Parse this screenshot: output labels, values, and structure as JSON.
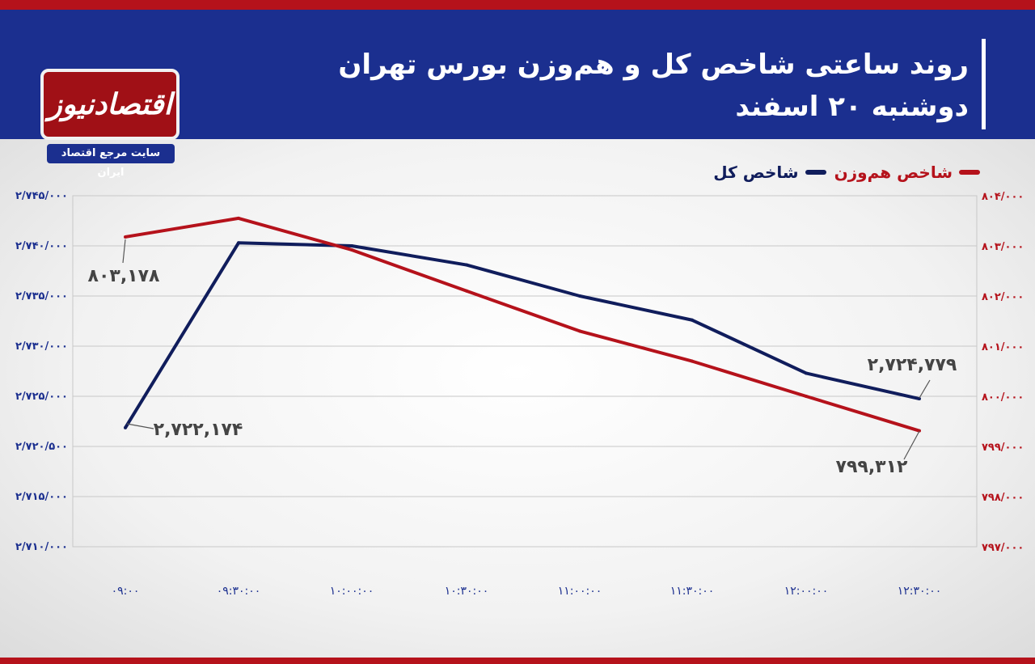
{
  "header": {
    "title_line1": "روند ساعتی شاخص کل و هم‌وزن بورس تهران",
    "title_line2": "دوشنبه ۲۰ اسفند"
  },
  "logo": {
    "name": "اقتصادنیوز",
    "tagline": "سایت مرجع اقتصاد ایران"
  },
  "colors": {
    "brand_red": "#b5121b",
    "brand_blue": "#1b2f8f",
    "series_total": "#101d5c",
    "series_equal": "#b5121b"
  },
  "legend": {
    "equal_weight": "شاخص هم‌وزن",
    "total": "شاخص کل"
  },
  "chart_data": {
    "type": "line",
    "x": [
      "۰۹:۰۰",
      "۰۹:۳۰:۰۰",
      "۱۰:۰۰:۰۰",
      "۱۰:۳۰:۰۰",
      "۱۱:۰۰:۰۰",
      "۱۱:۳۰:۰۰",
      "۱۲:۰۰:۰۰",
      "۱۲:۳۰:۰۰"
    ],
    "left_axis": {
      "ylim": [
        2710000,
        2745000
      ],
      "ticks": [
        2710000,
        2715000,
        2720500,
        2725000,
        2730000,
        2735000,
        2740000,
        2745000
      ],
      "tick_labels": [
        "۲/۷۱۰/۰۰۰",
        "۲/۷۱۵/۰۰۰",
        "۲/۷۲۰/۵۰۰",
        "۲/۷۲۵/۰۰۰",
        "۲/۷۳۰/۰۰۰",
        "۲/۷۳۵/۰۰۰",
        "۲/۷۴۰/۰۰۰",
        "۲/۷۴۵/۰۰۰"
      ]
    },
    "right_axis": {
      "ylim": [
        797000,
        804000
      ],
      "ticks": [
        797000,
        798000,
        799000,
        800000,
        801000,
        802000,
        803000,
        804000
      ],
      "tick_labels": [
        "۷۹۷/۰۰۰",
        "۷۹۸/۰۰۰",
        "۷۹۹/۰۰۰",
        "۸۰۰/۰۰۰",
        "۸۰۱/۰۰۰",
        "۸۰۲/۰۰۰",
        "۸۰۳/۰۰۰",
        "۸۰۴/۰۰۰"
      ]
    },
    "series": [
      {
        "name": "شاخص کل",
        "axis": "left",
        "values": [
          2722174,
          2740300,
          2740000,
          2738100,
          2735000,
          2732600,
          2727300,
          2724779
        ]
      },
      {
        "name": "شاخص هم‌وزن",
        "axis": "right",
        "values": [
          803178,
          803550,
          802920,
          802100,
          801300,
          800700,
          800000,
          799312
        ]
      }
    ],
    "annotations": [
      {
        "text": "۸۰۳,۱۷۸",
        "series": 1,
        "point": 0
      },
      {
        "text": "۲,۷۲۲,۱۷۴",
        "series": 0,
        "point": 0
      },
      {
        "text": "۲,۷۲۴,۷۷۹",
        "series": 0,
        "point": 7
      },
      {
        "text": "۷۹۹,۳۱۲",
        "series": 1,
        "point": 7
      }
    ],
    "grid": true,
    "legend_position": "top-right"
  }
}
